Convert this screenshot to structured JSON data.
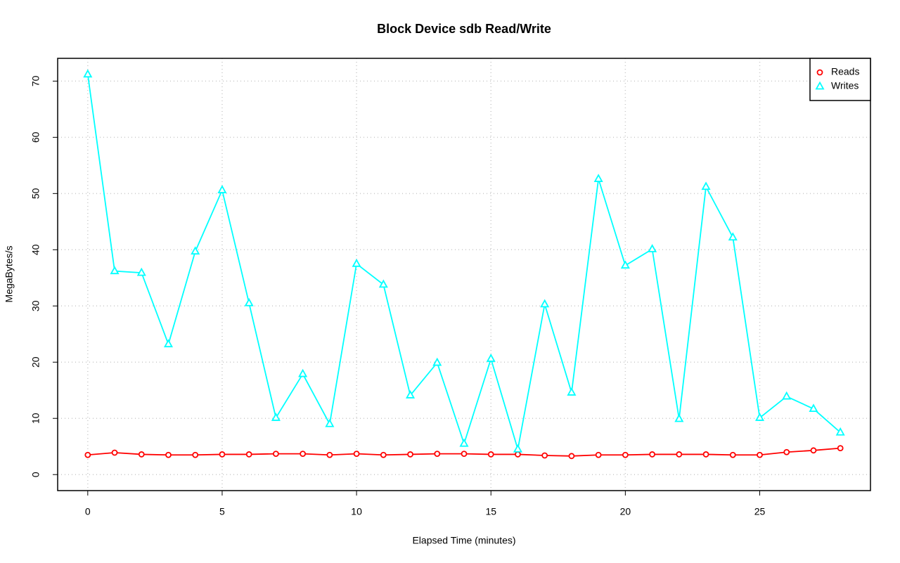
{
  "chart_data": {
    "type": "line",
    "title": "Block Device sdb Read/Write",
    "x_label": "Elapsed Time (minutes)",
    "y_label": "MegaBytes/s",
    "x": [
      0,
      1,
      2,
      3,
      4,
      5,
      6,
      7,
      8,
      9,
      10,
      11,
      12,
      13,
      14,
      15,
      16,
      17,
      18,
      19,
      20,
      21,
      22,
      23,
      24,
      25,
      26,
      27,
      28
    ],
    "series": [
      {
        "name": "Reads",
        "color": "#ff0000",
        "marker": "circle",
        "values": [
          3.5,
          3.9,
          3.6,
          3.5,
          3.5,
          3.6,
          3.6,
          3.7,
          3.7,
          3.5,
          3.7,
          3.5,
          3.6,
          3.7,
          3.7,
          3.6,
          3.6,
          3.4,
          3.3,
          3.5,
          3.5,
          3.6,
          3.6,
          3.6,
          3.5,
          3.5,
          4.0,
          4.3,
          4.7
        ]
      },
      {
        "name": "Writes",
        "color": "#00ffff",
        "marker": "triangle",
        "values": [
          71.2,
          36.2,
          35.9,
          23.2,
          39.7,
          50.6,
          30.5,
          10.1,
          17.9,
          9.0,
          37.5,
          33.8,
          14.1,
          19.9,
          5.5,
          20.6,
          4.5,
          30.3,
          14.6,
          52.6,
          37.2,
          40.1,
          9.9,
          51.2,
          42.2,
          10.1,
          13.9,
          11.7,
          7.5
        ]
      }
    ],
    "xlim": [
      -1.12,
      29.12
    ],
    "xticks": [
      0,
      5,
      10,
      15,
      20,
      25
    ],
    "ylim": [
      -2.85,
      74.05
    ],
    "yticks": [
      0,
      10,
      20,
      30,
      40,
      50,
      60,
      70
    ],
    "grid": true,
    "legend": "top-right"
  }
}
